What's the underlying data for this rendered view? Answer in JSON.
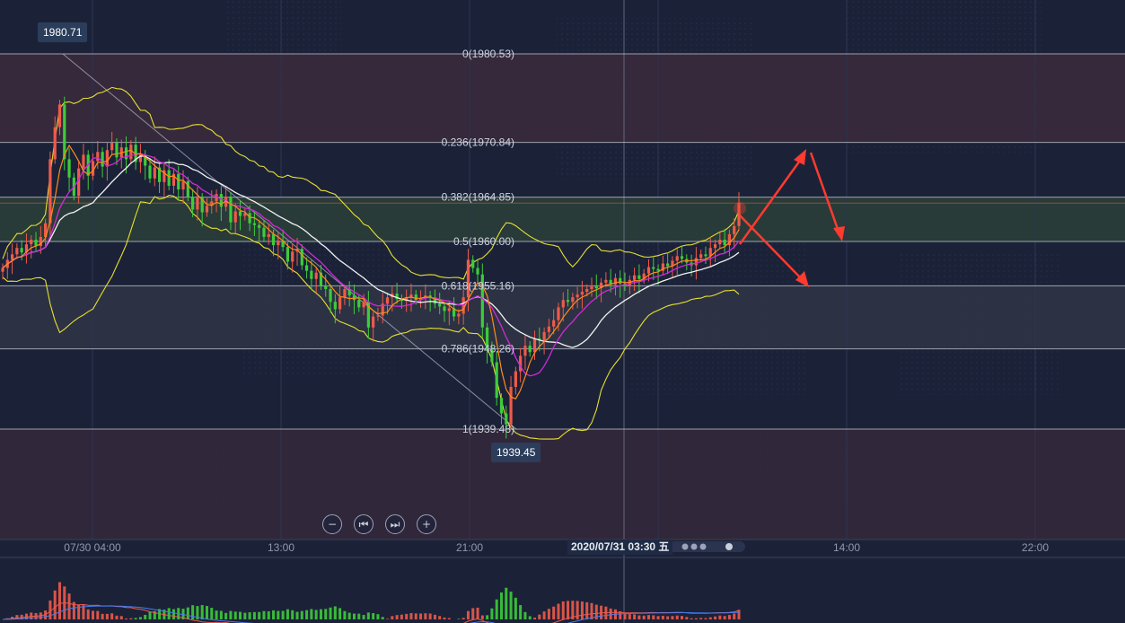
{
  "colors": {
    "background": "#1b2238",
    "up_candle": "#ef5a4a",
    "down_candle": "#3dcc3a",
    "bollinger": "#e8e030",
    "ma_fast": "#ff8c1a",
    "ma_mid": "#d02ad6",
    "ma_slow": "#f2f2f2",
    "arrow": "#ff3b30",
    "fib_zone_red": "#3a2a3c",
    "fib_zone_green": "#2b3f38",
    "fib_zone_grey": "#2f3545"
  },
  "price_tags": {
    "high": "1980.71",
    "low": "1939.45"
  },
  "cursor_label": "2020/07/31 03:30 五",
  "controls": {
    "zoom_out": "−",
    "prev": "⏮",
    "next": "⏭",
    "zoom_in": "+"
  },
  "chart_data": {
    "type": "candlestick",
    "subtitle": "",
    "x_ticks": [
      "07/30 04:00",
      "13:00",
      "21:00",
      "14:00",
      "22:00"
    ],
    "fibonacci_levels": [
      {
        "ratio": 0,
        "price": 1980.53,
        "label": "0(1980.53)"
      },
      {
        "ratio": 0.236,
        "price": 1970.84,
        "label": "0.236(1970.84)"
      },
      {
        "ratio": 0.382,
        "price": 1964.85,
        "label": "0.382(1964.85)"
      },
      {
        "ratio": 0.5,
        "price": 1960.0,
        "label": "0.5(1960.00)"
      },
      {
        "ratio": 0.618,
        "price": 1955.16,
        "label": "0.618(1955.16)"
      },
      {
        "ratio": 0.786,
        "price": 1948.26,
        "label": "0.786(1948.26)"
      },
      {
        "ratio": 1,
        "price": 1939.48,
        "label": "1(1939.48)"
      }
    ],
    "y_range": [
      1928.0,
      1985.0
    ],
    "high_marker": 1980.71,
    "low_marker": 1939.45,
    "candles_close": [
      1957.1,
      1958.0,
      1958.6,
      1959.3,
      1958.8,
      1959.7,
      1960.2,
      1959.5,
      1960.5,
      1962.0,
      1969.0,
      1972.5,
      1975.0,
      1969.0,
      1967.0,
      1965.0,
      1968.0,
      1969.5,
      1967.2,
      1968.8,
      1969.8,
      1968.2,
      1970.0,
      1970.8,
      1969.2,
      1970.3,
      1969.0,
      1970.6,
      1968.7,
      1969.5,
      1968.3,
      1966.9,
      1968.1,
      1966.5,
      1967.8,
      1966.1,
      1967.4,
      1965.7,
      1966.6,
      1964.9,
      1963.5,
      1964.8,
      1963.2,
      1963.9,
      1964.4,
      1965.2,
      1963.8,
      1964.9,
      1962.1,
      1963.3,
      1962.8,
      1963.1,
      1962.0,
      1961.8,
      1961.5,
      1960.5,
      1960.8,
      1959.6,
      1960.1,
      1959.4,
      1957.8,
      1958.9,
      1959.2,
      1957.4,
      1956.8,
      1955.9,
      1956.6,
      1955.2,
      1954.8,
      1953.4,
      1952.6,
      1953.9,
      1954.8,
      1954.1,
      1953.6,
      1952.8,
      1953.4,
      1950.6,
      1951.8,
      1951.9,
      1953.2,
      1953.9,
      1954.3,
      1953.7,
      1953.5,
      1953.9,
      1954.2,
      1953.6,
      1953.8,
      1954.1,
      1953.9,
      1953.2,
      1952.9,
      1952.4,
      1952.7,
      1951.8,
      1952.1,
      1953.9,
      1958.0,
      1957.1,
      1956.4,
      1950.6,
      1948.2,
      1946.8,
      1942.9,
      1941.2,
      1940.0,
      1944.1,
      1945.8,
      1947.5,
      1948.6,
      1947.9,
      1949.4,
      1949.2,
      1950.1,
      1950.7,
      1951.4,
      1952.8,
      1953.6,
      1953.4,
      1953.9,
      1954.2,
      1954.5,
      1954.8,
      1955.2,
      1954.9,
      1955.5,
      1955.8,
      1955.3,
      1956.0,
      1955.4,
      1955.1,
      1955.8,
      1956.3,
      1955.9,
      1956.5,
      1957.2,
      1957.0,
      1956.8,
      1957.6,
      1957.3,
      1957.9,
      1958.4,
      1958.1,
      1957.7,
      1957.4,
      1958.2,
      1958.6,
      1958.4,
      1959.3,
      1959.7,
      1960.2,
      1959.6,
      1960.8,
      1961.7,
      1964.2
    ]
  }
}
